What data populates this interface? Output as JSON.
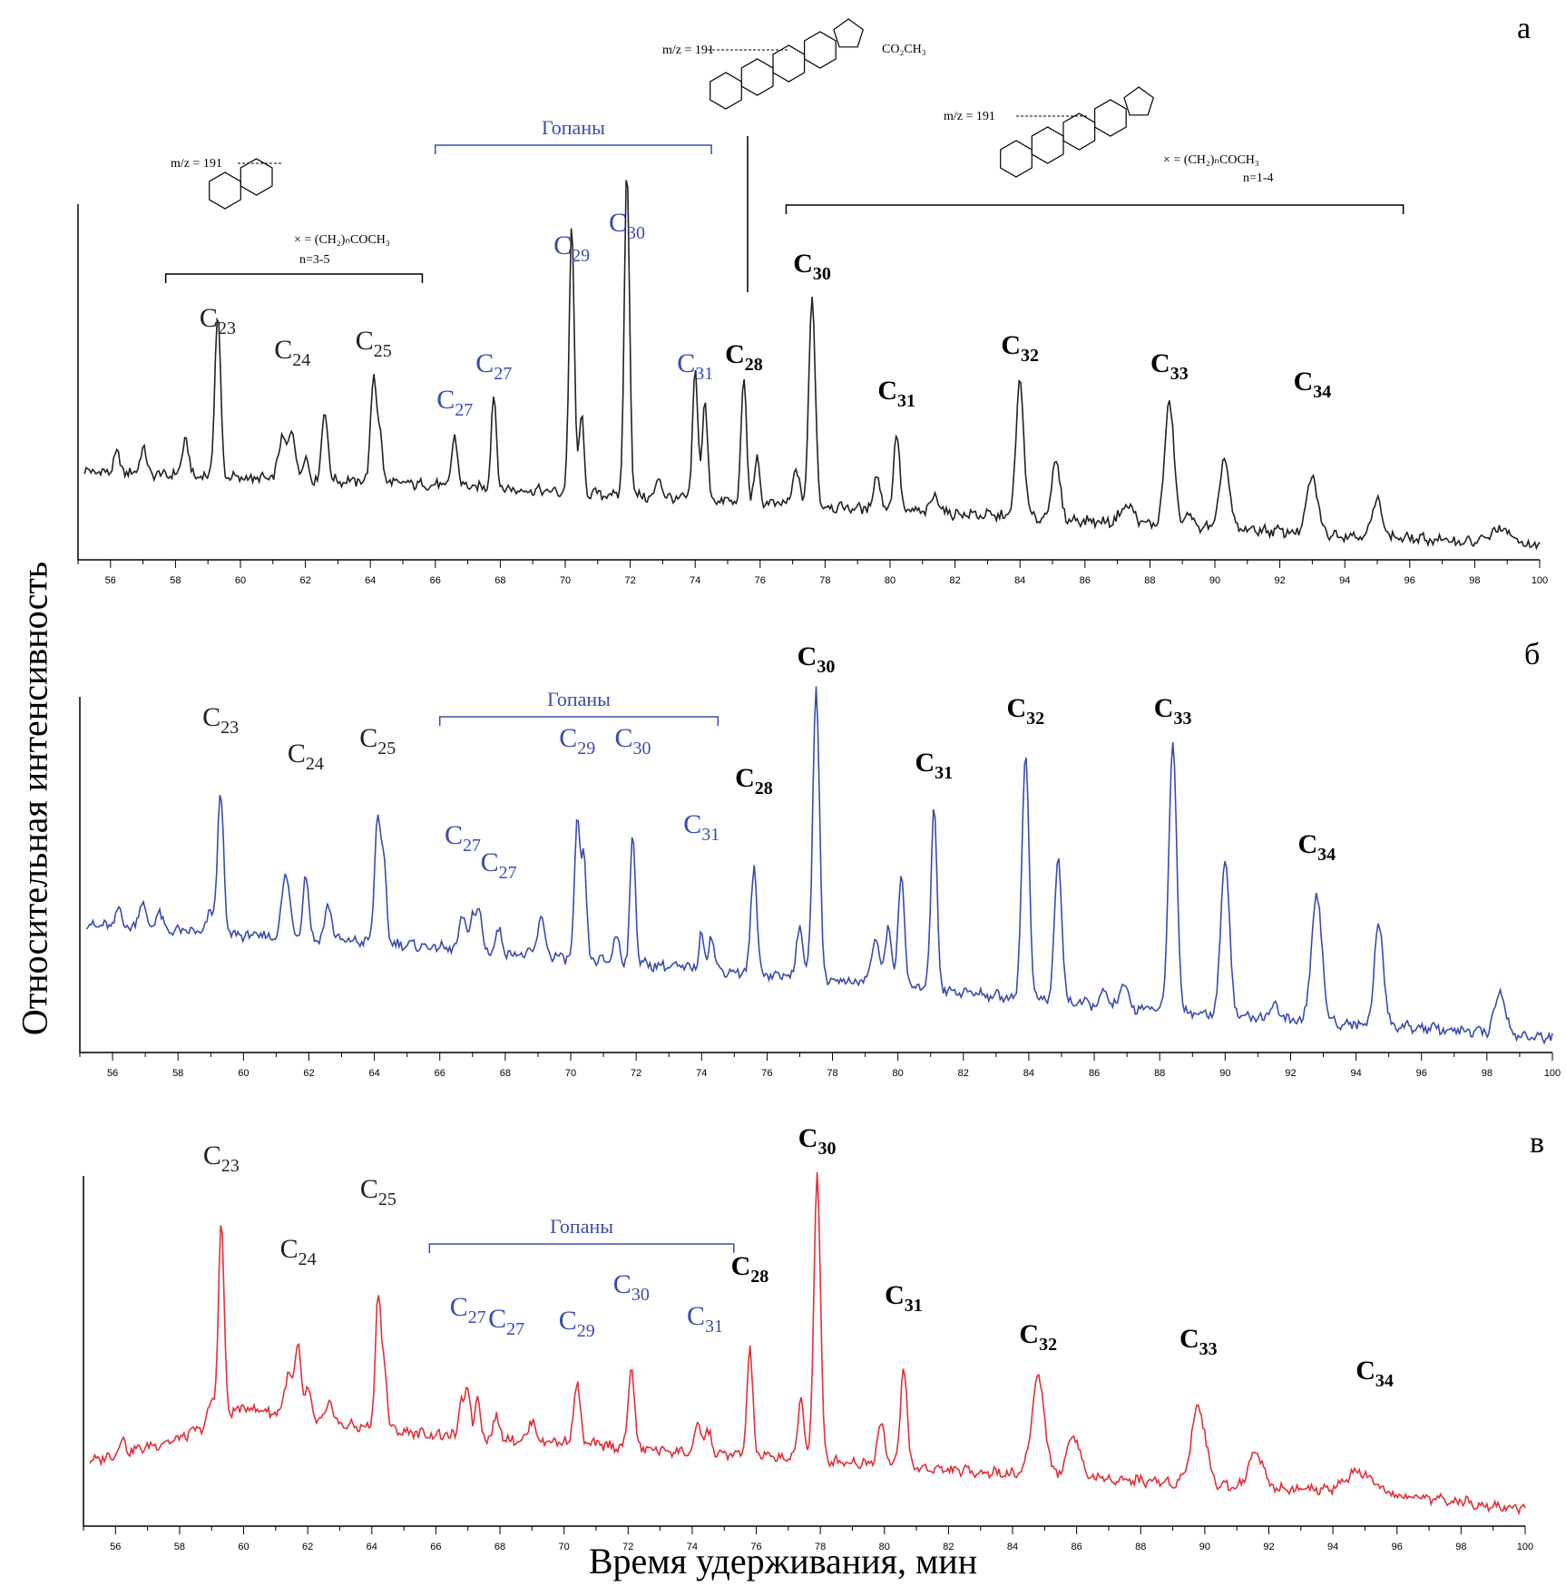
{
  "figure": {
    "ylabel": "Относительная интенсивность",
    "xlabel": "Время удерживания, мин"
  },
  "chart_data": [
    {
      "panel": "а",
      "type": "line",
      "color": "#222222",
      "xlim": [
        55,
        100
      ],
      "xticks": [
        56,
        58,
        60,
        62,
        64,
        66,
        68,
        70,
        72,
        74,
        76,
        78,
        80,
        82,
        84,
        86,
        88,
        90,
        92,
        94,
        96,
        98,
        100
      ],
      "baseline": [
        [
          55,
          0.25
        ],
        [
          60,
          0.23
        ],
        [
          64,
          0.22
        ],
        [
          68,
          0.2
        ],
        [
          72,
          0.18
        ],
        [
          76,
          0.16
        ],
        [
          80,
          0.14
        ],
        [
          84,
          0.12
        ],
        [
          88,
          0.1
        ],
        [
          92,
          0.08
        ],
        [
          96,
          0.06
        ],
        [
          100,
          0.04
        ]
      ],
      "peaks": [
        [
          56.2,
          0.05,
          0.1
        ],
        [
          57.0,
          0.07,
          0.1
        ],
        [
          58.3,
          0.1,
          0.1
        ],
        [
          59.3,
          0.45,
          0.09
        ],
        [
          61.3,
          0.12,
          0.12
        ],
        [
          61.6,
          0.13,
          0.1
        ],
        [
          62.0,
          0.06,
          0.1
        ],
        [
          62.6,
          0.2,
          0.09
        ],
        [
          64.1,
          0.3,
          0.09
        ],
        [
          64.3,
          0.12,
          0.08
        ],
        [
          66.6,
          0.14,
          0.09
        ],
        [
          67.8,
          0.26,
          0.08
        ],
        [
          70.2,
          0.75,
          0.08
        ],
        [
          70.5,
          0.22,
          0.07
        ],
        [
          71.9,
          0.92,
          0.08
        ],
        [
          72.9,
          0.06,
          0.08
        ],
        [
          74.0,
          0.36,
          0.08
        ],
        [
          74.3,
          0.28,
          0.08
        ],
        [
          75.5,
          0.35,
          0.08
        ],
        [
          75.9,
          0.12,
          0.08
        ],
        [
          77.1,
          0.1,
          0.1
        ],
        [
          77.6,
          0.58,
          0.1
        ],
        [
          79.6,
          0.1,
          0.1
        ],
        [
          80.2,
          0.22,
          0.09
        ],
        [
          81.4,
          0.05,
          0.12
        ],
        [
          84.0,
          0.38,
          0.12
        ],
        [
          85.1,
          0.16,
          0.13
        ],
        [
          87.3,
          0.05,
          0.2
        ],
        [
          88.6,
          0.35,
          0.14
        ],
        [
          89.2,
          0.04,
          0.1
        ],
        [
          90.3,
          0.2,
          0.14
        ],
        [
          93.0,
          0.16,
          0.16
        ],
        [
          95.0,
          0.1,
          0.16
        ],
        [
          98.8,
          0.04,
          0.3
        ]
      ],
      "series": [
        {
          "label": "C",
          "sub": "23",
          "x": 59.3,
          "color": "#222222",
          "bold": false
        },
        {
          "label": "C",
          "sub": "24",
          "x": 61.6,
          "color": "#222222",
          "bold": false
        },
        {
          "label": "C",
          "sub": "25",
          "x": 64.1,
          "color": "#222222",
          "bold": false
        },
        {
          "label": "C",
          "sub": "27",
          "x": 66.6,
          "color": "#3a4cad",
          "bold": false
        },
        {
          "label": "C",
          "sub": "27",
          "x": 67.8,
          "color": "#3a4cad",
          "bold": false
        },
        {
          "label": "C",
          "sub": "29",
          "x": 70.2,
          "color": "#3a4cad",
          "bold": false
        },
        {
          "label": "C",
          "sub": "30",
          "x": 71.9,
          "color": "#3a4cad",
          "bold": false
        },
        {
          "label": "C",
          "sub": "31",
          "x": 74.0,
          "color": "#3a4cad",
          "bold": false
        },
        {
          "label": "C",
          "sub": "28",
          "x": 75.5,
          "color": "#000000",
          "bold": true
        },
        {
          "label": "C",
          "sub": "30",
          "x": 77.6,
          "color": "#000000",
          "bold": true
        },
        {
          "label": "C",
          "sub": "31",
          "x": 80.2,
          "color": "#000000",
          "bold": true
        },
        {
          "label": "C",
          "sub": "32",
          "x": 84.0,
          "color": "#000000",
          "bold": true
        },
        {
          "label": "C",
          "sub": "33",
          "x": 88.6,
          "color": "#000000",
          "bold": true
        },
        {
          "label": "C",
          "sub": "34",
          "x": 93.0,
          "color": "#000000",
          "bold": true
        }
      ],
      "bracket": {
        "label": "Гопаны",
        "x1": 66.0,
        "x2": 74.5
      },
      "annotations": [
        {
          "text": "m/z = 191",
          "note": "× = (CH₂)ₙCOCH₃",
          "note2": "n=3-5",
          "x1": 57.7,
          "x2": 65.6
        },
        {
          "text": "m/z = 191",
          "note": "CO₂CH₃"
        },
        {
          "text": "m/z = 191",
          "note": "× = (CH₂)ₙCOCH₃",
          "note2": "n=1-4",
          "x1": 76.8,
          "x2": 95.8
        }
      ]
    },
    {
      "panel": "б",
      "type": "line",
      "color": "#3a4cad",
      "xlim": [
        55,
        100
      ],
      "xticks": [
        56,
        58,
        60,
        62,
        64,
        66,
        68,
        70,
        72,
        74,
        76,
        78,
        80,
        82,
        84,
        86,
        88,
        90,
        92,
        94,
        96,
        98,
        100
      ],
      "baseline": [
        [
          55,
          0.36
        ],
        [
          60,
          0.33
        ],
        [
          64,
          0.31
        ],
        [
          68,
          0.28
        ],
        [
          72,
          0.25
        ],
        [
          76,
          0.22
        ],
        [
          80,
          0.19
        ],
        [
          84,
          0.15
        ],
        [
          88,
          0.12
        ],
        [
          92,
          0.09
        ],
        [
          96,
          0.07
        ],
        [
          100,
          0.04
        ]
      ],
      "peaks": [
        [
          56.2,
          0.05,
          0.1
        ],
        [
          56.9,
          0.08,
          0.1
        ],
        [
          57.4,
          0.05,
          0.1
        ],
        [
          59.0,
          0.06,
          0.1
        ],
        [
          59.3,
          0.4,
          0.09
        ],
        [
          61.3,
          0.18,
          0.12
        ],
        [
          61.9,
          0.18,
          0.09
        ],
        [
          62.6,
          0.1,
          0.1
        ],
        [
          64.1,
          0.36,
          0.09
        ],
        [
          64.3,
          0.2,
          0.08
        ],
        [
          66.7,
          0.1,
          0.09
        ],
        [
          67.0,
          0.1,
          0.08
        ],
        [
          67.2,
          0.12,
          0.08
        ],
        [
          67.8,
          0.06,
          0.1
        ],
        [
          69.1,
          0.1,
          0.12
        ],
        [
          70.2,
          0.38,
          0.08
        ],
        [
          70.4,
          0.28,
          0.08
        ],
        [
          71.4,
          0.07,
          0.1
        ],
        [
          71.9,
          0.36,
          0.08
        ],
        [
          74.0,
          0.1,
          0.08
        ],
        [
          74.3,
          0.1,
          0.08
        ],
        [
          75.6,
          0.3,
          0.09
        ],
        [
          77.0,
          0.14,
          0.1
        ],
        [
          77.5,
          0.82,
          0.1
        ],
        [
          79.3,
          0.12,
          0.12
        ],
        [
          79.7,
          0.16,
          0.1
        ],
        [
          80.1,
          0.32,
          0.09
        ],
        [
          81.1,
          0.52,
          0.09
        ],
        [
          83.9,
          0.68,
          0.11
        ],
        [
          84.9,
          0.4,
          0.11
        ],
        [
          86.3,
          0.04,
          0.1
        ],
        [
          86.9,
          0.06,
          0.12
        ],
        [
          88.4,
          0.75,
          0.12
        ],
        [
          90.0,
          0.45,
          0.13
        ],
        [
          91.5,
          0.04,
          0.15
        ],
        [
          92.8,
          0.35,
          0.16
        ],
        [
          94.7,
          0.28,
          0.14
        ],
        [
          98.4,
          0.12,
          0.16
        ]
      ],
      "series": [
        {
          "label": "C",
          "sub": "23",
          "x": 59.3,
          "color": "#222222",
          "bold": false
        },
        {
          "label": "C",
          "sub": "24",
          "x": 61.9,
          "color": "#222222",
          "bold": false
        },
        {
          "label": "C",
          "sub": "25",
          "x": 64.1,
          "color": "#222222",
          "bold": false
        },
        {
          "label": "C",
          "sub": "27",
          "x": 66.7,
          "color": "#3a4cad",
          "bold": false
        },
        {
          "label": "C",
          "sub": "27",
          "x": 67.8,
          "color": "#3a4cad",
          "bold": false
        },
        {
          "label": "C",
          "sub": "29",
          "x": 70.2,
          "color": "#3a4cad",
          "bold": false
        },
        {
          "label": "C",
          "sub": "30",
          "x": 71.9,
          "color": "#3a4cad",
          "bold": false
        },
        {
          "label": "C",
          "sub": "31",
          "x": 74.0,
          "color": "#3a4cad",
          "bold": false
        },
        {
          "label": "C",
          "sub": "28",
          "x": 75.6,
          "color": "#000000",
          "bold": true
        },
        {
          "label": "C",
          "sub": "30",
          "x": 77.5,
          "color": "#000000",
          "bold": true
        },
        {
          "label": "C",
          "sub": "31",
          "x": 81.1,
          "color": "#000000",
          "bold": true
        },
        {
          "label": "C",
          "sub": "32",
          "x": 83.9,
          "color": "#000000",
          "bold": true
        },
        {
          "label": "C",
          "sub": "33",
          "x": 88.4,
          "color": "#000000",
          "bold": true
        },
        {
          "label": "C",
          "sub": "34",
          "x": 92.8,
          "color": "#000000",
          "bold": true
        }
      ],
      "bracket": {
        "label": "Гопаны",
        "x1": 66.0,
        "x2": 74.5
      }
    },
    {
      "panel": "в",
      "type": "line",
      "color": "#e0303a",
      "xlim": [
        55,
        100
      ],
      "xticks": [
        56,
        58,
        60,
        62,
        64,
        66,
        68,
        70,
        72,
        74,
        76,
        78,
        80,
        82,
        84,
        86,
        88,
        90,
        92,
        94,
        96,
        98,
        100
      ],
      "baseline": [
        [
          55,
          0.18
        ],
        [
          58,
          0.25
        ],
        [
          60,
          0.34
        ],
        [
          63,
          0.29
        ],
        [
          66,
          0.26
        ],
        [
          70,
          0.24
        ],
        [
          74,
          0.21
        ],
        [
          78,
          0.19
        ],
        [
          82,
          0.16
        ],
        [
          86,
          0.14
        ],
        [
          90,
          0.12
        ],
        [
          94,
          0.1
        ],
        [
          97,
          0.08
        ],
        [
          100,
          0.05
        ]
      ],
      "peaks": [
        [
          56.2,
          0.04,
          0.1
        ],
        [
          59.0,
          0.06,
          0.1
        ],
        [
          59.3,
          0.55,
          0.09
        ],
        [
          61.4,
          0.12,
          0.12
        ],
        [
          61.7,
          0.2,
          0.09
        ],
        [
          62.0,
          0.08,
          0.1
        ],
        [
          62.7,
          0.06,
          0.1
        ],
        [
          64.2,
          0.38,
          0.09
        ],
        [
          64.4,
          0.16,
          0.08
        ],
        [
          66.8,
          0.1,
          0.08
        ],
        [
          67.0,
          0.14,
          0.08
        ],
        [
          67.3,
          0.12,
          0.08
        ],
        [
          67.9,
          0.06,
          0.1
        ],
        [
          69.0,
          0.06,
          0.1
        ],
        [
          70.4,
          0.17,
          0.1
        ],
        [
          72.1,
          0.24,
          0.09
        ],
        [
          74.2,
          0.08,
          0.1
        ],
        [
          74.5,
          0.06,
          0.1
        ],
        [
          75.8,
          0.3,
          0.09
        ],
        [
          77.4,
          0.18,
          0.09
        ],
        [
          77.9,
          0.82,
          0.1
        ],
        [
          79.9,
          0.12,
          0.12
        ],
        [
          80.6,
          0.29,
          0.1
        ],
        [
          84.8,
          0.28,
          0.2
        ],
        [
          85.9,
          0.12,
          0.2
        ],
        [
          89.8,
          0.22,
          0.22
        ],
        [
          91.6,
          0.1,
          0.22
        ],
        [
          94.8,
          0.06,
          0.4
        ]
      ],
      "series": [
        {
          "label": "C",
          "sub": "23",
          "x": 59.3,
          "color": "#222222",
          "bold": false
        },
        {
          "label": "C",
          "sub": "24",
          "x": 61.7,
          "color": "#222222",
          "bold": false
        },
        {
          "label": "C",
          "sub": "25",
          "x": 64.2,
          "color": "#222222",
          "bold": false
        },
        {
          "label": "C",
          "sub": "27",
          "x": 67.0,
          "color": "#3a4cad",
          "bold": false
        },
        {
          "label": "C",
          "sub": "27",
          "x": 68.2,
          "color": "#3a4cad",
          "bold": false
        },
        {
          "label": "C",
          "sub": "29",
          "x": 70.4,
          "color": "#3a4cad",
          "bold": false
        },
        {
          "label": "C",
          "sub": "30",
          "x": 72.1,
          "color": "#3a4cad",
          "bold": false
        },
        {
          "label": "C",
          "sub": "31",
          "x": 74.4,
          "color": "#3a4cad",
          "bold": false
        },
        {
          "label": "C",
          "sub": "28",
          "x": 75.8,
          "color": "#000000",
          "bold": true
        },
        {
          "label": "C",
          "sub": "30",
          "x": 77.9,
          "color": "#000000",
          "bold": true
        },
        {
          "label": "C",
          "sub": "31",
          "x": 80.6,
          "color": "#000000",
          "bold": true
        },
        {
          "label": "C",
          "sub": "32",
          "x": 84.8,
          "color": "#000000",
          "bold": true
        },
        {
          "label": "C",
          "sub": "33",
          "x": 89.8,
          "color": "#000000",
          "bold": true
        },
        {
          "label": "C",
          "sub": "34",
          "x": 95.3,
          "color": "#000000",
          "bold": true
        }
      ],
      "bracket": {
        "label": "Гопаны",
        "x1": 65.8,
        "x2": 75.3
      }
    }
  ]
}
